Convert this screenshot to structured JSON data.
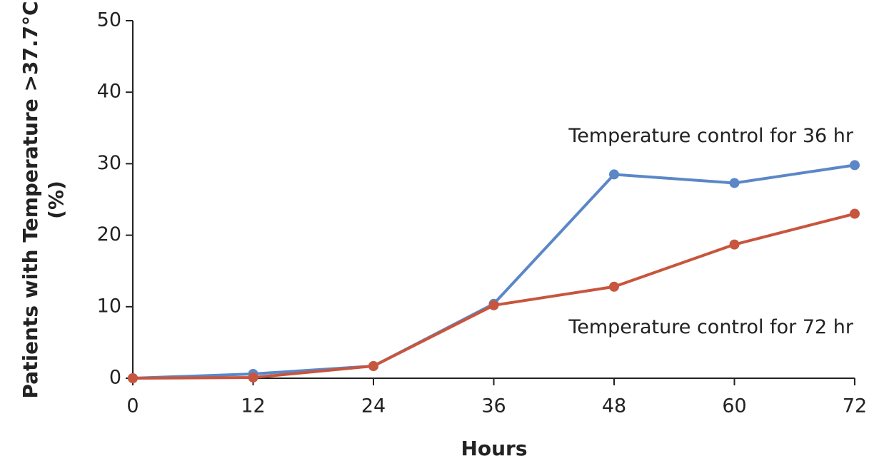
{
  "chart_data": {
    "type": "line",
    "x_label": "Hours",
    "y_label": [
      "Patients with Temperature >37.7°C",
      "(%)"
    ],
    "x": [
      0,
      12,
      24,
      36,
      48,
      60,
      72
    ],
    "series": [
      {
        "name": "Temperature control for 36 hr",
        "color": "#5b87c7",
        "values": [
          0,
          0.6,
          1.7,
          10.4,
          28.5,
          27.3,
          29.8
        ]
      },
      {
        "name": "Temperature control for 72 hr",
        "color": "#c8553d",
        "values": [
          0,
          0.1,
          1.7,
          10.2,
          12.8,
          18.7,
          23.0
        ]
      }
    ],
    "xlim": [
      0,
      72
    ],
    "xticks": [
      0,
      12,
      24,
      36,
      48,
      60,
      72
    ],
    "ylim": [
      0,
      50
    ],
    "yticks": [
      0,
      10,
      20,
      30,
      40,
      50
    ],
    "grid": false
  }
}
